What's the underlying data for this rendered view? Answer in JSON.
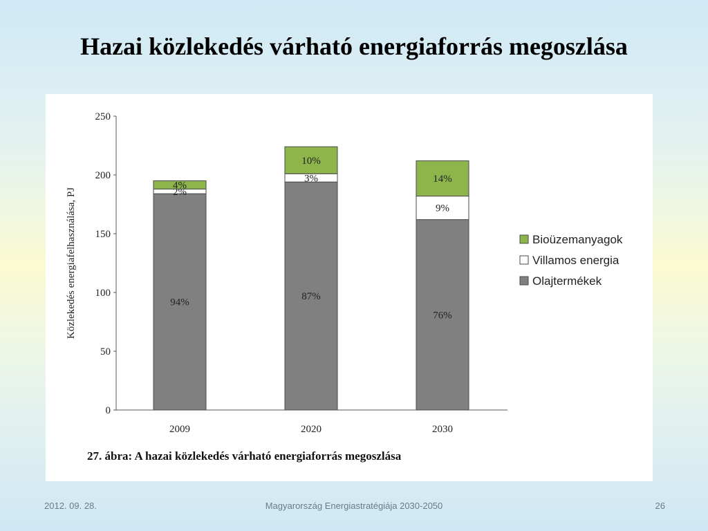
{
  "slide": {
    "title": "Hazai közlekedés várható energiaforrás megoszlása",
    "footer_date": "2012. 09. 28.",
    "footer_center": "Magyarország Energiastratégiája 2030-2050",
    "footer_page": "26"
  },
  "chart_data": {
    "type": "bar",
    "stacked": true,
    "caption": "27. ábra: A hazai közlekedés várható energiaforrás megoszlása",
    "ylabel": "Közlekedés energiafelhasználása,  PJ",
    "xlabel": "",
    "ylim": [
      0,
      250
    ],
    "yticks": [
      0,
      50,
      100,
      150,
      200,
      250
    ],
    "categories": [
      "2009",
      "2020",
      "2030"
    ],
    "series": [
      {
        "name": "Olajtermékek",
        "color": "#808080",
        "values": [
          184,
          194,
          162
        ],
        "labels": [
          "94%",
          "87%",
          "76%"
        ]
      },
      {
        "name": "Villamos energia",
        "color": "#ffffff",
        "values": [
          4,
          7,
          20
        ],
        "labels": [
          "2%",
          "3%",
          "9%"
        ]
      },
      {
        "name": "Bioüzemanyagok",
        "color": "#8db54b",
        "values": [
          7,
          23,
          30
        ],
        "labels": [
          "4%",
          "10%",
          "14%"
        ]
      }
    ],
    "legend_order": [
      "Bioüzemanyagok",
      "Villamos energia",
      "Olajtermékek"
    ],
    "legend_position": "right",
    "grid": false
  }
}
